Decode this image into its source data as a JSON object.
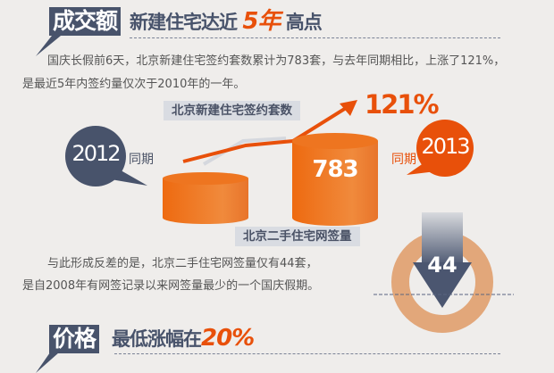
{
  "section1": {
    "tag": "成交额",
    "title": "新建住宅达近",
    "highlight": "5年",
    "title_end": "高点",
    "paragraph_line1": "国庆长假前6天，北京新建住宅签约套数累计为783套，与去年同期相比，上涨了121%，",
    "paragraph_line2": "是最近5年内签约量仅次于2010年的一年。",
    "chart_label": "北京新建住宅签约套数",
    "growth": "121%",
    "year_prev": "2012",
    "year_prev_suffix": "同期",
    "year_curr": "2013",
    "year_curr_suffix": "同期",
    "value_curr": "783"
  },
  "section2": {
    "chart_label": "北京二手住宅网签量",
    "value": "44",
    "paragraph_line1": "与此形成反差的是，北京二手住宅网签量仅有44套，",
    "paragraph_line2": "是自2008年有网签记录以来网签量最少的一个国庆假期。"
  },
  "section3": {
    "tag": "价格",
    "title": "最低涨幅在",
    "highlight": "20%"
  },
  "colors": {
    "accent": "#e8500a",
    "navy": "#48536b",
    "ring": "#e2a77a",
    "cylinder": "#ef7118"
  }
}
